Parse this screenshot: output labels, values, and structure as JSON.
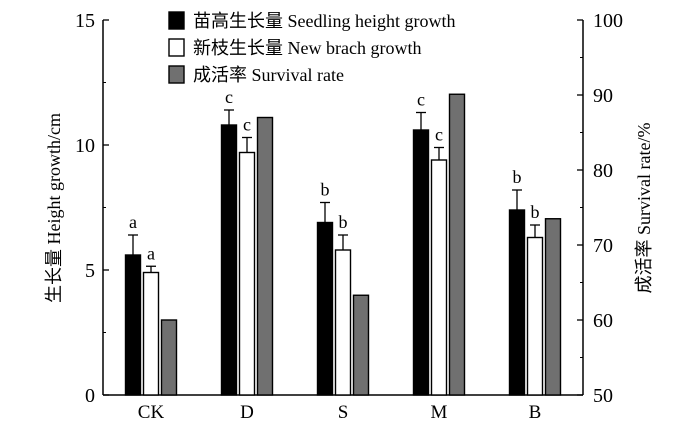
{
  "chart_data": {
    "type": "bar",
    "categories": [
      "CK",
      "D",
      "S",
      "M",
      "B"
    ],
    "left_axis": {
      "label": "生长量 Height growth/cm",
      "ylim": [
        0,
        15
      ],
      "ticks": [
        "0",
        "5",
        "10",
        "15"
      ]
    },
    "right_axis": {
      "label": "成活率 Survival rate/%",
      "ylim": [
        50,
        100
      ],
      "ticks": [
        "50",
        "60",
        "70",
        "80",
        "90",
        "100"
      ]
    },
    "series": [
      {
        "name": "苗高生长量 Seedling height growth",
        "axis": "left",
        "color": "#000000",
        "values": [
          5.6,
          10.8,
          6.9,
          10.6,
          7.4
        ],
        "errors": [
          0.8,
          0.6,
          0.8,
          0.7,
          0.8
        ],
        "labels": [
          "a",
          "c",
          "b",
          "c",
          "b"
        ]
      },
      {
        "name": "新枝生长量 New brach growth",
        "axis": "left",
        "color": "#ffffff",
        "values": [
          4.9,
          9.7,
          5.8,
          9.4,
          6.3
        ],
        "errors": [
          0.25,
          0.6,
          0.6,
          0.5,
          0.5
        ],
        "labels": [
          "a",
          "c",
          "b",
          "c",
          "b"
        ]
      },
      {
        "name": "成活率 Survival rate",
        "axis": "right",
        "color": "#707070",
        "values": [
          60,
          87,
          63.3,
          90.1,
          73.5
        ],
        "errors": null,
        "labels": null
      }
    ],
    "legend_position": "top-center"
  }
}
